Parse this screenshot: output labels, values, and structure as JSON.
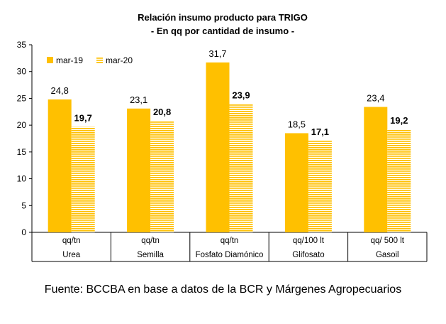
{
  "chart_data": {
    "type": "bar",
    "title": "Relación insumo producto para TRIGO",
    "subtitle": "- En qq por cantidad de insumo -",
    "categories": [
      "Urea",
      "Semilla",
      "Fosfato Diamónico",
      "Glifosato",
      "Gasoil"
    ],
    "units": [
      "qq/tn",
      "qq/tn",
      "qq/tn",
      "qq/100 lt",
      "qq/ 500 lt"
    ],
    "ylim": [
      0,
      35
    ],
    "yticks": [
      "0",
      "5",
      "10",
      "15",
      "20",
      "25",
      "30",
      "35"
    ],
    "grid": false,
    "legend_position": "top-left",
    "series": [
      {
        "name": "mar-19",
        "values": [
          24.8,
          23.1,
          31.7,
          18.5,
          23.4
        ],
        "labels": [
          "24,8",
          "23,1",
          "31,7",
          "18,5",
          "23,4"
        ],
        "color": "#FFC000",
        "pattern": "solid"
      },
      {
        "name": "mar-20",
        "values": [
          19.7,
          20.8,
          23.9,
          17.1,
          19.2
        ],
        "labels": [
          "19,7",
          "20,8",
          "23,9",
          "17,1",
          "19,2"
        ],
        "color": "#FFC000",
        "pattern": "horizontal-stripes"
      }
    ]
  },
  "source_text": "Fuente: BCCBA en base a datos de la BCR y Márgenes Agropecuarios"
}
